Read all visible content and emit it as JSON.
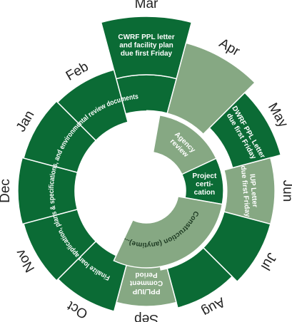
{
  "months": [
    "Mar",
    "Apr",
    "May",
    "Jun",
    "Jul",
    "Aug",
    "Sep",
    "Oct",
    "Nov",
    "Dec",
    "Jan",
    "Feb"
  ],
  "notes": {
    "mar": [
      "CWRF PPL letter",
      "and facility plan",
      "due first Friday"
    ],
    "may": [
      "DWRF PPL Letter",
      "due first Friday"
    ],
    "jun": [
      "IUP Letter",
      "due first Friday"
    ],
    "sep": [
      "PPL/IUP",
      "Comment",
      "Period"
    ]
  },
  "bands": {
    "loan": "Finalize loan application, plans & specifications, and environmental review documents",
    "agency": [
      "Agency",
      "review"
    ],
    "cert": [
      "Project",
      "certi-",
      "cation"
    ],
    "construction": "Construction (anytime)..."
  }
}
